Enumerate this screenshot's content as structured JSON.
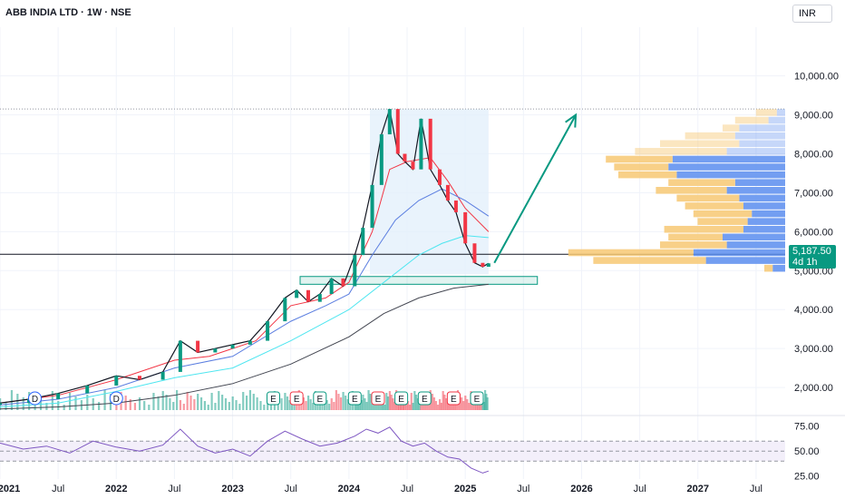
{
  "header": {
    "title": "ABB INDIA LTD · 1W · NSE"
  },
  "currency_label": "INR",
  "price_tag": {
    "price": "5,187.50",
    "countdown": "4d 1h"
  },
  "colors": {
    "up": "#089981",
    "down": "#f23645",
    "ema_red": "#f23645",
    "ema_blue": "#5b7ee0",
    "ema_cyan": "#4ee6f0",
    "ema_black": "#434651",
    "rsi_line": "#7e57c2",
    "vp_up": "#5b8def",
    "vp_down": "#f7c873",
    "highlight_box": "#e3f0fb",
    "arrow": "#089981"
  },
  "event_markers": [
    {
      "label": "D"
    },
    {
      "label": "D"
    },
    {
      "label": "E"
    },
    {
      "label": "E"
    },
    {
      "label": "E"
    },
    {
      "label": "E"
    },
    {
      "label": "E"
    },
    {
      "label": "E"
    },
    {
      "label": "E"
    },
    {
      "label": "E"
    },
    {
      "label": "E"
    }
  ],
  "chart_data": {
    "type": "line",
    "title": "ABB INDIA LTD · 1W · NSE",
    "price_axis": {
      "ticks": [
        2000,
        3000,
        4000,
        5000,
        6000,
        7000,
        8000,
        9000,
        10000
      ],
      "tick_labels": [
        "2,000.00",
        "3,000.00",
        "4,000.00",
        "5,000.00",
        "6,000.00",
        "7,000.00",
        "8,000.00",
        "9,000.00",
        "10,000.00"
      ],
      "ylim": [
        1350,
        11250
      ]
    },
    "time_axis": {
      "labels": [
        "2021",
        "Jul",
        "2022",
        "Jul",
        "2023",
        "Jul",
        "2024",
        "Jul",
        "2025",
        "Jul",
        "2026",
        "Jul",
        "2027",
        "Jul"
      ],
      "bold": [
        "2021",
        "2022",
        "2023",
        "2024",
        "2025",
        "2026",
        "2027"
      ],
      "xlim": [
        2021.0,
        2027.75
      ]
    },
    "series": [
      {
        "name": "Close",
        "x": [
          2021.0,
          2021.25,
          2021.5,
          2021.75,
          2022.0,
          2022.2,
          2022.4,
          2022.55,
          2022.7,
          2022.85,
          2023.0,
          2023.15,
          2023.3,
          2023.45,
          2023.55,
          2023.65,
          2023.75,
          2023.85,
          2023.95,
          2024.05,
          2024.12,
          2024.2,
          2024.28,
          2024.35,
          2024.42,
          2024.48,
          2024.55,
          2024.62,
          2024.7,
          2024.78,
          2024.85,
          2024.92,
          2025.0,
          2025.08,
          2025.15,
          2025.2
        ],
        "values": [
          1600,
          1700,
          1850,
          2050,
          2300,
          2200,
          2400,
          3200,
          2900,
          3000,
          3100,
          3200,
          3700,
          4300,
          4500,
          4200,
          4400,
          4800,
          4600,
          5400,
          6100,
          7200,
          8500,
          9150,
          8000,
          7800,
          7600,
          8900,
          7600,
          7200,
          6800,
          6500,
          5700,
          5200,
          5100,
          5187.5
        ]
      },
      {
        "name": "EMA red",
        "x": [
          2021.0,
          2021.5,
          2022.0,
          2022.5,
          2022.8,
          2023.2,
          2023.5,
          2023.8,
          2024.0,
          2024.2,
          2024.35,
          2024.5,
          2024.7,
          2024.85,
          2025.0,
          2025.2
        ],
        "values": [
          1600,
          1800,
          2200,
          2700,
          2800,
          3200,
          4100,
          4300,
          4700,
          6000,
          7600,
          7800,
          7900,
          7300,
          6600,
          6000
        ]
      },
      {
        "name": "EMA blue",
        "x": [
          2021.0,
          2021.5,
          2022.0,
          2022.5,
          2023.0,
          2023.5,
          2023.8,
          2024.0,
          2024.2,
          2024.4,
          2024.6,
          2024.8,
          2025.0,
          2025.2
        ],
        "values": [
          1550,
          1700,
          2000,
          2500,
          2800,
          3700,
          4100,
          4400,
          5400,
          6300,
          6800,
          7100,
          6800,
          6400
        ]
      },
      {
        "name": "EMA cyan",
        "x": [
          2021.0,
          2021.5,
          2022.0,
          2022.5,
          2023.0,
          2023.5,
          2024.0,
          2024.3,
          2024.6,
          2024.8,
          2025.0,
          2025.2
        ],
        "values": [
          1500,
          1600,
          1900,
          2250,
          2500,
          3200,
          4000,
          4700,
          5400,
          5700,
          5900,
          5850
        ]
      },
      {
        "name": "EMA black",
        "x": [
          2021.0,
          2021.5,
          2022.0,
          2022.5,
          2023.0,
          2023.5,
          2024.0,
          2024.3,
          2024.6,
          2024.9,
          2025.2
        ],
        "values": [
          1450,
          1500,
          1600,
          1800,
          2100,
          2600,
          3300,
          3900,
          4300,
          4550,
          4650
        ]
      }
    ],
    "annotations": {
      "arrow": {
        "from": [
          2025.25,
          5200
        ],
        "to": [
          2025.95,
          9000
        ]
      },
      "rally_box": {
        "x": [
          2024.18,
          2025.2
        ],
        "y": [
          4900,
          9150
        ]
      },
      "support_zone": {
        "x": [
          2023.58,
          2025.62
        ],
        "y": [
          4650,
          4850
        ]
      },
      "horizontal_line": 5420,
      "dotted_line": 9150
    },
    "rsi": {
      "ticks": [
        25,
        50,
        75
      ],
      "tick_labels": [
        "25.00",
        "50.00",
        "75.00"
      ],
      "band": [
        40,
        60
      ],
      "ylim": [
        22,
        82
      ],
      "x": [
        2021.0,
        2021.2,
        2021.4,
        2021.6,
        2021.8,
        2022.0,
        2022.2,
        2022.4,
        2022.55,
        2022.7,
        2022.85,
        2023.0,
        2023.15,
        2023.3,
        2023.45,
        2023.6,
        2023.75,
        2023.9,
        2024.05,
        2024.15,
        2024.25,
        2024.35,
        2024.45,
        2024.55,
        2024.65,
        2024.75,
        2024.85,
        2024.95,
        2025.05,
        2025.15,
        2025.2
      ],
      "values": [
        58,
        52,
        55,
        48,
        60,
        54,
        50,
        56,
        72,
        55,
        48,
        52,
        45,
        60,
        70,
        62,
        55,
        58,
        65,
        72,
        68,
        74,
        60,
        55,
        58,
        50,
        44,
        42,
        33,
        28,
        30
      ]
    },
    "volume_profile": {
      "price_bins": [
        9050,
        8850,
        8650,
        8450,
        8250,
        8050,
        7850,
        7650,
        7450,
        7250,
        7050,
        6850,
        6650,
        6450,
        6250,
        6050,
        5850,
        5650,
        5450,
        5250,
        5050
      ],
      "up": [
        10,
        20,
        55,
        60,
        55,
        70,
        135,
        140,
        130,
        60,
        70,
        55,
        50,
        40,
        45,
        50,
        75,
        70,
        110,
        95,
        15
      ],
      "down": [
        25,
        40,
        20,
        60,
        95,
        110,
        80,
        65,
        70,
        80,
        85,
        75,
        70,
        70,
        60,
        95,
        65,
        80,
        150,
        135,
        10
      ]
    }
  }
}
